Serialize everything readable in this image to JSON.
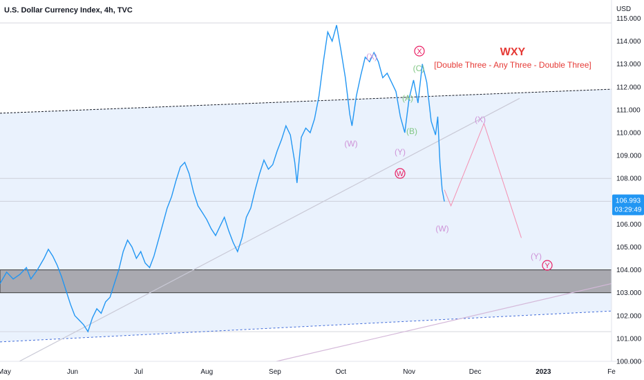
{
  "header": {
    "title": "U.S. Dollar Currency Index, 4h, TVC",
    "currency": "USD"
  },
  "chart_data": {
    "type": "line",
    "title": "U.S. Dollar Currency Index, 4h, TVC",
    "ylim": [
      100,
      115.8
    ],
    "y_ticks": [
      "100.000",
      "101.000",
      "102.000",
      "103.000",
      "104.000",
      "105.000",
      "106.000",
      "107.000",
      "108.000",
      "109.000",
      "110.000",
      "111.000",
      "112.000",
      "113.000",
      "114.000",
      "115.000"
    ],
    "x_ticks": [
      "May",
      "Jun",
      "Jul",
      "Aug",
      "Sep",
      "Oct",
      "Nov",
      "Dec",
      "2023",
      "Fe"
    ],
    "x_range_days": [
      0,
      278
    ],
    "series": [
      {
        "points": [
          [
            0,
            103.4
          ],
          [
            3,
            103.9
          ],
          [
            6,
            103.6
          ],
          [
            9,
            103.8
          ],
          [
            12,
            104.1
          ],
          [
            14,
            103.6
          ],
          [
            17,
            104.0
          ],
          [
            20,
            104.5
          ],
          [
            22,
            104.9
          ],
          [
            24,
            104.6
          ],
          [
            26,
            104.2
          ],
          [
            28,
            103.7
          ],
          [
            30,
            103.1
          ],
          [
            32,
            102.5
          ],
          [
            34,
            102.0
          ],
          [
            36,
            101.8
          ],
          [
            38,
            101.6
          ],
          [
            40,
            101.3
          ],
          [
            42,
            101.9
          ],
          [
            44,
            102.3
          ],
          [
            46,
            102.1
          ],
          [
            48,
            102.6
          ],
          [
            50,
            102.8
          ],
          [
            52,
            103.4
          ],
          [
            54,
            104.0
          ],
          [
            56,
            104.8
          ],
          [
            58,
            105.3
          ],
          [
            60,
            105.0
          ],
          [
            62,
            104.5
          ],
          [
            64,
            104.8
          ],
          [
            66,
            104.3
          ],
          [
            68,
            104.1
          ],
          [
            70,
            104.6
          ],
          [
            72,
            105.3
          ],
          [
            74,
            106.0
          ],
          [
            76,
            106.7
          ],
          [
            78,
            107.2
          ],
          [
            80,
            107.9
          ],
          [
            82,
            108.5
          ],
          [
            84,
            108.7
          ],
          [
            86,
            108.2
          ],
          [
            88,
            107.4
          ],
          [
            90,
            106.8
          ],
          [
            92,
            106.5
          ],
          [
            94,
            106.2
          ],
          [
            96,
            105.8
          ],
          [
            98,
            105.5
          ],
          [
            100,
            105.9
          ],
          [
            102,
            106.3
          ],
          [
            104,
            105.7
          ],
          [
            106,
            105.2
          ],
          [
            108,
            104.8
          ],
          [
            110,
            105.4
          ],
          [
            112,
            106.3
          ],
          [
            114,
            106.7
          ],
          [
            116,
            107.5
          ],
          [
            118,
            108.2
          ],
          [
            120,
            108.8
          ],
          [
            122,
            108.4
          ],
          [
            124,
            108.6
          ],
          [
            126,
            109.2
          ],
          [
            128,
            109.7
          ],
          [
            130,
            110.3
          ],
          [
            132,
            109.9
          ],
          [
            134,
            108.7
          ],
          [
            135,
            107.8
          ],
          [
            137,
            109.8
          ],
          [
            139,
            110.2
          ],
          [
            141,
            110.0
          ],
          [
            143,
            110.6
          ],
          [
            145,
            111.6
          ],
          [
            147,
            113.1
          ],
          [
            149,
            114.4
          ],
          [
            151,
            114.0
          ],
          [
            153,
            114.7
          ],
          [
            155,
            113.6
          ],
          [
            157,
            112.4
          ],
          [
            159,
            110.8
          ],
          [
            160,
            110.3
          ],
          [
            162,
            111.6
          ],
          [
            164,
            112.5
          ],
          [
            166,
            113.3
          ],
          [
            168,
            113.1
          ],
          [
            170,
            113.5
          ],
          [
            172,
            113.1
          ],
          [
            174,
            112.4
          ],
          [
            176,
            112.6
          ],
          [
            178,
            112.2
          ],
          [
            180,
            111.8
          ],
          [
            182,
            110.7
          ],
          [
            184,
            110.0
          ],
          [
            186,
            111.5
          ],
          [
            188,
            112.3
          ],
          [
            190,
            111.3
          ],
          [
            192,
            113.0
          ],
          [
            194,
            112.2
          ],
          [
            196,
            110.5
          ],
          [
            198,
            109.9
          ],
          [
            199,
            110.7
          ],
          [
            200,
            108.7
          ],
          [
            201,
            107.5
          ],
          [
            202,
            106.99
          ]
        ]
      }
    ],
    "projection": [
      [
        202,
        107.5
      ],
      [
        205,
        106.8
      ],
      [
        220,
        110.4
      ],
      [
        237,
        105.4
      ]
    ],
    "annotations": {
      "title": "WXY",
      "subtitle": "[Double Three - Any Three - Double Three]",
      "waves": [
        {
          "label": "(X)",
          "color": "#ce93d8"
        },
        {
          "label": "(W)",
          "color": "#ce93d8"
        },
        {
          "label": "(Y)",
          "color": "#ce93d8"
        },
        {
          "label": "(A)",
          "color": "#81c784"
        },
        {
          "label": "(B)",
          "color": "#81c784"
        },
        {
          "label": "(C)",
          "color": "#81c784"
        },
        {
          "label": "(X)",
          "color": "#ce93d8"
        },
        {
          "label": "(W)",
          "color": "#ce93d8"
        },
        {
          "label": "(Y)",
          "color": "#ce93d8"
        }
      ],
      "circled": [
        {
          "label": "X",
          "color": "#e91e63"
        },
        {
          "label": "W",
          "color": "#e91e63"
        },
        {
          "label": "Y",
          "color": "#e91e63"
        }
      ]
    },
    "support_zone": [
      103.0,
      104.0
    ],
    "horizontal_levels": [
      114.8,
      108.0,
      107.0,
      101.3
    ],
    "price_label": {
      "price": "106.993",
      "countdown": "03:29:49",
      "value": 106.993
    },
    "colors": {
      "price_line": "#2196f3",
      "channel_fill": "#eaf2fd",
      "zone_fill": "#a9a9b0",
      "accent": "#e91e63",
      "projection": "#f48fb1"
    }
  }
}
